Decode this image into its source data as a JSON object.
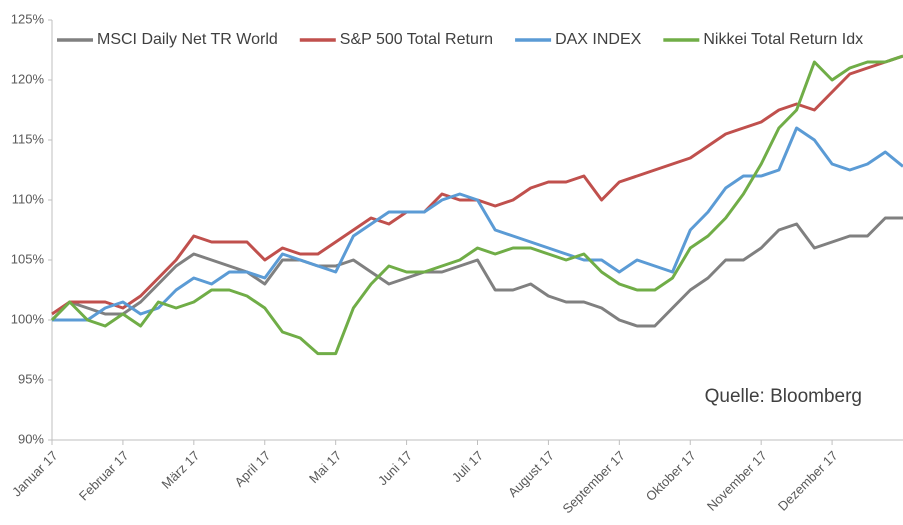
{
  "chart_data": {
    "type": "line",
    "annotation": "Quelle: Bloomberg",
    "categories": [
      "Januar 17",
      null,
      null,
      null,
      "Februar 17",
      null,
      null,
      null,
      "März 17",
      null,
      null,
      null,
      "April 17",
      null,
      null,
      null,
      "Mai 17",
      null,
      null,
      null,
      "Juni 17",
      null,
      null,
      null,
      "Juli 17",
      null,
      null,
      null,
      "August 17",
      null,
      null,
      null,
      "September 17",
      null,
      null,
      null,
      "Oktober 17",
      null,
      null,
      null,
      "November 17",
      null,
      null,
      null,
      "Dezember 17",
      null,
      null,
      null,
      null
    ],
    "ylim": [
      90,
      125
    ],
    "yticks": [
      {
        "value": 90,
        "label": "90%"
      },
      {
        "value": 95,
        "label": "95%"
      },
      {
        "value": 100,
        "label": "100%"
      },
      {
        "value": 105,
        "label": "105%"
      },
      {
        "value": 110,
        "label": "110%"
      },
      {
        "value": 115,
        "label": "115%"
      },
      {
        "value": 120,
        "label": "120%"
      },
      {
        "value": 125,
        "label": "125%"
      }
    ],
    "grid": false,
    "legend": "top",
    "series": [
      {
        "name": "MSCI Daily Net TR World",
        "color": "#808080",
        "values": [
          100,
          101.5,
          101,
          100.5,
          100.5,
          101.5,
          103,
          104.5,
          105.5,
          105,
          104.5,
          104,
          103,
          105,
          105,
          104.5,
          104.5,
          105,
          104,
          103,
          103.5,
          104,
          104,
          104.5,
          105,
          102.5,
          102.5,
          103,
          102,
          101.5,
          101.5,
          101,
          100,
          99.5,
          99.5,
          101,
          102.5,
          103.5,
          105,
          105,
          106,
          107.5,
          108,
          106,
          106.5,
          107,
          107,
          108.5,
          108.5
        ]
      },
      {
        "name": "S&P 500 Total Return",
        "color": "#c0504d",
        "values": [
          100.5,
          101.5,
          101.5,
          101.5,
          101,
          102,
          103.5,
          105,
          107,
          106.5,
          106.5,
          106.5,
          105,
          106,
          105.5,
          105.5,
          106.5,
          107.5,
          108.5,
          108,
          109,
          109,
          110.5,
          110,
          110,
          109.5,
          110,
          111,
          111.5,
          111.5,
          112,
          110,
          111.5,
          112,
          112.5,
          113,
          113.5,
          114.5,
          115.5,
          116,
          116.5,
          117.5,
          118,
          117.5,
          119,
          120.5,
          121,
          121.5,
          122
        ]
      },
      {
        "name": "DAX INDEX",
        "color": "#5b9bd5",
        "values": [
          100,
          100,
          100,
          101,
          101.5,
          100.5,
          101,
          102.5,
          103.5,
          103,
          104,
          104,
          103.5,
          105.5,
          105,
          104.5,
          104,
          107,
          108,
          109,
          109,
          109,
          110,
          110.5,
          110,
          107.5,
          107,
          106.5,
          106,
          105.5,
          105,
          105,
          104,
          105,
          104.5,
          104,
          107.5,
          109,
          111,
          112,
          112,
          112.5,
          116,
          115,
          113,
          112.5,
          113,
          114,
          112.8
        ]
      },
      {
        "name": "Nikkei Total Return Idx",
        "color": "#70ad47",
        "values": [
          100,
          101.5,
          100,
          99.5,
          100.5,
          99.5,
          101.5,
          101,
          101.5,
          102.5,
          102.5,
          102,
          101,
          99,
          98.5,
          97.2,
          97.2,
          101,
          103,
          104.5,
          104,
          104,
          104.5,
          105,
          106,
          105.5,
          106,
          106,
          105.5,
          105,
          105.5,
          104,
          103,
          102.5,
          102.5,
          103.5,
          106,
          107,
          108.5,
          110.5,
          113,
          116,
          117.5,
          121.5,
          120,
          121,
          121.5,
          121.5,
          122
        ]
      }
    ]
  }
}
